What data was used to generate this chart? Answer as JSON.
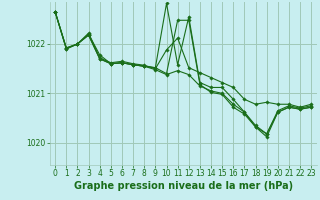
{
  "background_color": "#c8eef0",
  "grid_color": "#a0c8b8",
  "line_color": "#1a6e1a",
  "marker_color": "#1a6e1a",
  "xlabel": "Graphe pression niveau de la mer (hPa)",
  "xlabel_fontsize": 7,
  "tick_fontsize": 5.5,
  "xlim": [
    -0.5,
    23.5
  ],
  "ylim": [
    1019.55,
    1022.85
  ],
  "yticks": [
    1020,
    1021,
    1022
  ],
  "xticks": [
    0,
    1,
    2,
    3,
    4,
    5,
    6,
    7,
    8,
    9,
    10,
    11,
    12,
    13,
    14,
    15,
    16,
    17,
    18,
    19,
    20,
    21,
    22,
    23
  ],
  "series": [
    [
      1022.65,
      1021.92,
      1022.0,
      1022.2,
      1021.78,
      1021.6,
      1021.62,
      1021.58,
      1021.55,
      1021.48,
      1021.38,
      1021.46,
      1021.38,
      1021.15,
      1021.05,
      1021.0,
      1020.78,
      1020.62,
      1020.35,
      1020.18,
      1020.62,
      1020.72,
      1020.68,
      1020.72
    ],
    [
      1022.65,
      1021.92,
      1022.0,
      1022.22,
      1021.72,
      1021.62,
      1021.65,
      1021.6,
      1021.57,
      1021.5,
      1021.88,
      1022.12,
      1021.52,
      1021.42,
      1021.32,
      1021.22,
      1021.12,
      1020.88,
      1020.78,
      1020.82,
      1020.78,
      1020.78,
      1020.72,
      1020.78
    ],
    [
      1022.65,
      1021.9,
      1022.0,
      1022.18,
      1021.7,
      1021.6,
      1021.62,
      1021.58,
      1021.55,
      1021.52,
      1022.82,
      1021.58,
      1022.55,
      1021.22,
      1021.12,
      1021.12,
      1020.88,
      1020.62,
      1020.32,
      1020.18,
      1020.65,
      1020.75,
      1020.7,
      1020.75
    ],
    [
      1022.65,
      1021.9,
      1022.0,
      1022.18,
      1021.7,
      1021.6,
      1021.62,
      1021.58,
      1021.55,
      1021.52,
      1021.4,
      1022.48,
      1022.48,
      1021.18,
      1021.02,
      1020.98,
      1020.72,
      1020.58,
      1020.32,
      1020.12,
      1020.62,
      1020.72,
      1020.68,
      1020.72
    ]
  ]
}
